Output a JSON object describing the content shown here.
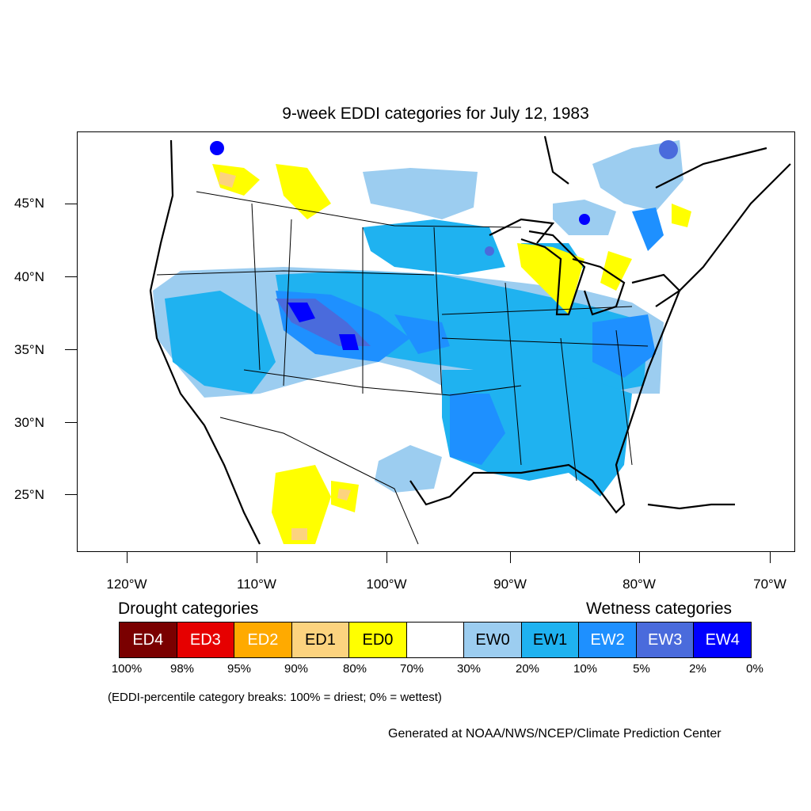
{
  "title": "9-week EDDI categories for July 12, 1983",
  "y_ticks": [
    "45°N",
    "40°N",
    "35°N",
    "30°N",
    "25°N"
  ],
  "x_ticks": [
    "120°W",
    "110°W",
    "100°W",
    "90°W",
    "80°W",
    "70°W"
  ],
  "drought_heading": "Drought categories",
  "wetness_heading": "Wetness categories",
  "legend": [
    {
      "label": "ED4",
      "color": "#7a0000",
      "text_color": "#ffffff"
    },
    {
      "label": "ED3",
      "color": "#e60000",
      "text_color": "#ffffff"
    },
    {
      "label": "ED2",
      "color": "#ffaa00",
      "text_color": "#ffffff"
    },
    {
      "label": "ED1",
      "color": "#fcd37f",
      "text_color": "#000000"
    },
    {
      "label": "ED0",
      "color": "#ffff00",
      "text_color": "#000000"
    },
    {
      "label": "",
      "color": "#ffffff",
      "text_color": "#000000"
    },
    {
      "label": "EW0",
      "color": "#9ccdf0",
      "text_color": "#000000"
    },
    {
      "label": "EW1",
      "color": "#1fb2f0",
      "text_color": "#000000"
    },
    {
      "label": "EW2",
      "color": "#1e90ff",
      "text_color": "#ffffff"
    },
    {
      "label": "EW3",
      "color": "#4a6bdc",
      "text_color": "#ffffff"
    },
    {
      "label": "EW4",
      "color": "#0000ff",
      "text_color": "#ffffff"
    }
  ],
  "percent_breaks": [
    "100%",
    "98%",
    "95%",
    "90%",
    "80%",
    "70%",
    "30%",
    "20%",
    "10%",
    "5%",
    "2%",
    "0%"
  ],
  "note": "(EDDI-percentile category breaks: 100% = driest; 0% = wettest)",
  "credit": "Generated at NOAA/NWS/NCEP/Climate Prediction Center"
}
